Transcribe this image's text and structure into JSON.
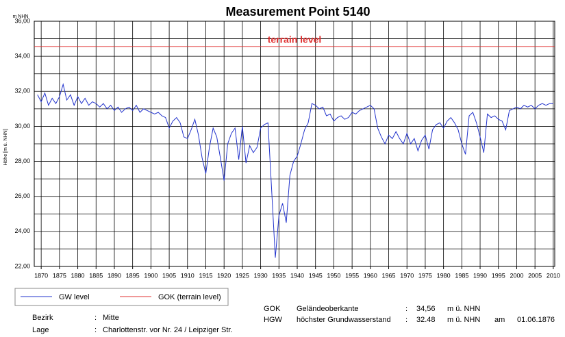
{
  "chart_data": {
    "type": "line",
    "title": "Measurement Point 5140",
    "y_unit": "m NHN",
    "y_label": "Höhe [m ü. NHN]",
    "x": [
      1869,
      1870,
      1871,
      1872,
      1873,
      1874,
      1875,
      1876,
      1877,
      1878,
      1879,
      1880,
      1881,
      1882,
      1883,
      1884,
      1885,
      1886,
      1887,
      1888,
      1889,
      1890,
      1891,
      1892,
      1893,
      1894,
      1895,
      1896,
      1897,
      1898,
      1899,
      1900,
      1901,
      1902,
      1903,
      1904,
      1905,
      1906,
      1907,
      1908,
      1909,
      1910,
      1911,
      1912,
      1913,
      1914,
      1915,
      1916,
      1917,
      1918,
      1919,
      1920,
      1921,
      1922,
      1923,
      1924,
      1925,
      1926,
      1927,
      1928,
      1929,
      1930,
      1931,
      1932,
      1933,
      1934,
      1935,
      1936,
      1937,
      1938,
      1939,
      1940,
      1941,
      1942,
      1943,
      1944,
      1945,
      1946,
      1947,
      1948,
      1949,
      1950,
      1951,
      1952,
      1953,
      1954,
      1955,
      1956,
      1957,
      1958,
      1959,
      1960,
      1961,
      1962,
      1963,
      1964,
      1965,
      1966,
      1967,
      1968,
      1969,
      1970,
      1971,
      1972,
      1973,
      1974,
      1975,
      1976,
      1977,
      1978,
      1979,
      1980,
      1981,
      1982,
      1983,
      1984,
      1985,
      1986,
      1987,
      1988,
      1989,
      1990,
      1991,
      1992,
      1993,
      1994,
      1995,
      1996,
      1997,
      1998,
      1999,
      2000,
      2001,
      2002,
      2003,
      2004,
      2005,
      2006,
      2007,
      2008,
      2009,
      2010
    ],
    "series": [
      {
        "name": "GW level",
        "color": "#2233cc",
        "values": [
          31.8,
          31.4,
          31.9,
          31.2,
          31.6,
          31.3,
          31.7,
          32.4,
          31.5,
          31.8,
          31.2,
          31.7,
          31.3,
          31.6,
          31.2,
          31.4,
          31.3,
          31.1,
          31.3,
          31.0,
          31.2,
          30.9,
          31.1,
          30.8,
          31.0,
          31.1,
          30.9,
          31.2,
          30.8,
          31.0,
          30.9,
          30.8,
          30.7,
          30.8,
          30.6,
          30.5,
          29.9,
          30.3,
          30.5,
          30.2,
          29.4,
          29.3,
          29.8,
          30.4,
          29.5,
          28.2,
          27.3,
          28.8,
          29.9,
          29.4,
          28.2,
          26.9,
          29.0,
          29.6,
          29.9,
          28.1,
          30.0,
          27.9,
          28.9,
          28.5,
          28.8,
          29.9,
          30.1,
          30.2,
          26.4,
          22.5,
          24.9,
          25.6,
          24.5,
          27.2,
          28.0,
          28.3,
          29.0,
          29.8,
          30.2,
          31.3,
          31.2,
          31.0,
          31.1,
          30.6,
          30.7,
          30.3,
          30.5,
          30.6,
          30.4,
          30.5,
          30.8,
          30.7,
          30.9,
          31.0,
          31.1,
          31.2,
          31.0,
          29.9,
          29.4,
          29.0,
          29.5,
          29.3,
          29.7,
          29.3,
          29.0,
          29.6,
          29.0,
          29.3,
          28.6,
          29.2,
          29.5,
          28.7,
          29.8,
          30.1,
          30.2,
          29.9,
          30.3,
          30.5,
          30.2,
          29.8,
          29.0,
          28.4,
          30.6,
          30.8,
          30.2,
          29.4,
          28.5,
          30.7,
          30.5,
          30.6,
          30.4,
          30.3,
          29.8,
          30.9,
          31.0,
          31.1,
          31.0,
          31.2,
          31.1,
          31.2,
          31.0,
          31.2,
          31.3,
          31.2,
          31.3,
          31.3
        ]
      }
    ],
    "reference_lines": [
      {
        "name": "GOK (terrain level)",
        "label": "terrain level",
        "value": 34.56,
        "color": "#e03030"
      }
    ],
    "xlim": [
      1868.1,
      2010.4
    ],
    "xticks": [
      1870,
      1875,
      1880,
      1885,
      1890,
      1895,
      1900,
      1905,
      1910,
      1915,
      1920,
      1925,
      1930,
      1935,
      1940,
      1945,
      1950,
      1955,
      1960,
      1965,
      1970,
      1975,
      1980,
      1985,
      1990,
      1995,
      2000,
      2005,
      2010
    ],
    "ylim": [
      22,
      36
    ],
    "yticks": [
      {
        "value": 22,
        "label": "22,00"
      },
      {
        "value": 24,
        "label": "24,00"
      },
      {
        "value": 26,
        "label": "26,00"
      },
      {
        "value": 28,
        "label": "28,00"
      },
      {
        "value": 30,
        "label": "30,00"
      },
      {
        "value": 32,
        "label": "32,00"
      },
      {
        "value": 34,
        "label": "34,00"
      },
      {
        "value": 36,
        "label": "36,00"
      }
    ],
    "yminor_grid": [
      23,
      25,
      27,
      29,
      31,
      33,
      35
    ],
    "grid": true
  },
  "info": {
    "station": [
      [
        "Bezirk",
        ":",
        "Mitte"
      ],
      [
        "Lage",
        ":",
        "Charlottenstr. vor Nr. 24 / Leipziger Str."
      ]
    ],
    "levels": [
      [
        "GOK",
        "Geländeoberkante",
        ":",
        "34,56",
        "m ü. NHN"
      ],
      [
        "HGW",
        "höchster Grundwasserstand",
        ":",
        "32.48",
        "m ü. NHN",
        "am",
        "01.06.1876"
      ]
    ]
  }
}
